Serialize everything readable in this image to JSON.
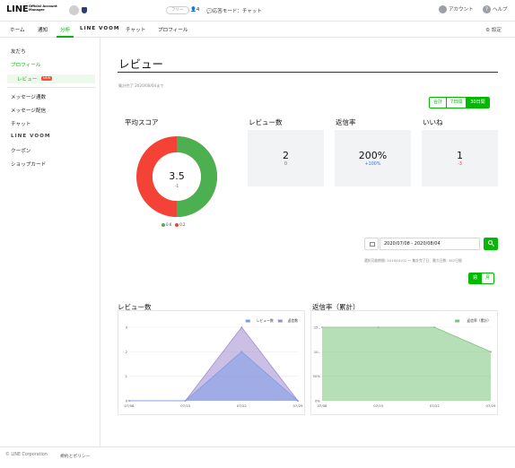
{
  "header": {
    "logo": "LINE",
    "logo_sub": "Official Account Manager",
    "plan_badge": "フリー",
    "followers": "4",
    "reply_mode": "応答モード：チャット",
    "account_label": "アカウント",
    "help_label": "ヘルプ"
  },
  "nav": {
    "tabs": [
      "ホーム",
      "通知",
      "分析",
      "LINE VOOM",
      "チャット",
      "プロフィール"
    ],
    "active_tab": "分析",
    "settings_label": "設定"
  },
  "sidebar": {
    "items": [
      "友だち",
      "プロフィール",
      "レビュー",
      "メッセージ通数",
      "メッセージ配信",
      "チャット",
      "LINE VOOM",
      "クーポン",
      "ショップカード"
    ],
    "active_item": "レビュー",
    "new_badge": "NEW"
  },
  "page": {
    "title": "レビュー",
    "last_updated": "集計完了 2020/08/04まで",
    "range_buttons": [
      "合計",
      "7日間",
      "30日間"
    ],
    "active_range": "30日間"
  },
  "average_score": {
    "title": "平均スコア",
    "value": "3.5",
    "change": "-1",
    "legend": [
      "0.6",
      "0.2"
    ],
    "green_fraction": 0.5,
    "colors": {
      "green": "#4caf50",
      "red": "#f44336"
    }
  },
  "metrics": [
    {
      "title": "レビュー数",
      "value": "2",
      "sub": "0",
      "sub_color": "gray"
    },
    {
      "title": "返信率",
      "value": "200%",
      "sub": "+100%",
      "sub_color": "blue"
    },
    {
      "title": "いいね",
      "value": "1",
      "sub": "-3",
      "sub_color": "red"
    }
  ],
  "date_filter": {
    "value": "2020/07/08 - 2020/08/04",
    "note": "選択可能期間: 2019/01/01 〜 集計完了日、最大日数: 367日間",
    "granularity": [
      "週",
      "月"
    ],
    "active_granularity": "週"
  },
  "chart_data": [
    {
      "type": "area",
      "title": "レビュー数",
      "x": [
        "07/08",
        "07/15",
        "07/22",
        "07/29"
      ],
      "series": [
        {
          "name": "レビュー数",
          "values": [
            0,
            0,
            2,
            0
          ],
          "color": "#7b9de6"
        },
        {
          "name": "返信数",
          "values": [
            0,
            0,
            3,
            0
          ],
          "color": "#a08bcf"
        }
      ],
      "yticks": [
        0,
        1,
        2,
        3
      ],
      "ylim": [
        0,
        3
      ],
      "legend": "top-right",
      "grid": true
    },
    {
      "type": "area",
      "title": "返信率（累計）",
      "x": [
        "07/08",
        "07/15",
        "07/22",
        "07/29"
      ],
      "series": [
        {
          "name": "返信率（累計）",
          "values": [
            150,
            150,
            150,
            100
          ],
          "color": "#7cc47c"
        }
      ],
      "yticks": [
        "0%",
        "50%",
        "10..",
        "15.."
      ],
      "ylim": [
        0,
        150
      ],
      "legend": "top-right",
      "grid": true
    }
  ],
  "footer": {
    "copyright": "© LINE Corporation",
    "terms": "規約とポリシー"
  }
}
